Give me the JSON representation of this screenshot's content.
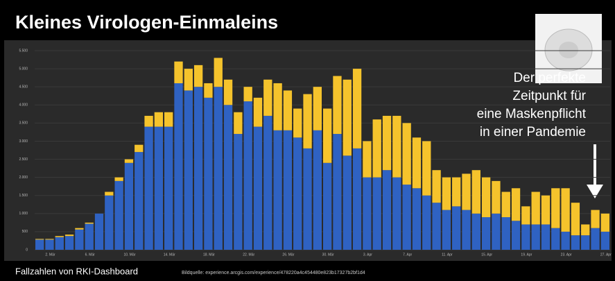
{
  "chart_data": {
    "type": "stacked-bar",
    "title": "Kleines Virologen-Einmaleins",
    "annotation": [
      "Der perfekte",
      "Zeitpunkt für",
      "eine Maskenpflicht",
      "in einer Pandemie"
    ],
    "footer": "Fallzahlen von RKI-Dashboard",
    "source": "Bildquelle: experience.arcgis.com/experience/478220a4c454480e823b17327b2bf1d4",
    "categories": [
      null,
      "2. Mär",
      null,
      null,
      null,
      "6. Mär",
      null,
      null,
      null,
      "10. Mär",
      null,
      null,
      null,
      "14. Mär",
      null,
      null,
      null,
      "18. Mär",
      null,
      null,
      null,
      "22. Mär",
      null,
      null,
      null,
      "26. Mär",
      null,
      null,
      null,
      "30. Mär",
      null,
      null,
      null,
      "3. Apr",
      null,
      null,
      null,
      "7. Apr",
      null,
      null,
      null,
      "11. Apr",
      null,
      null,
      null,
      "15. Apr",
      null,
      null,
      null,
      "19. Apr",
      null,
      null,
      null,
      "23. Apr",
      null,
      null,
      null,
      "27. Apr"
    ],
    "series": [
      {
        "color": "#2f62c2",
        "values": [
          280,
          280,
          350,
          380,
          560,
          720,
          1000,
          1500,
          1900,
          2400,
          2700,
          3400,
          3400,
          3400,
          4600,
          4400,
          4500,
          4200,
          4500,
          4000,
          3200,
          4100,
          3400,
          3700,
          3300,
          3300,
          3100,
          2800,
          3300,
          2400,
          3200,
          2600,
          2800,
          2000,
          2000,
          2200,
          2000,
          1800,
          1700,
          1500,
          1300,
          1100,
          1200,
          1100,
          1000,
          900,
          1000,
          900,
          800,
          700,
          700,
          700,
          600,
          500,
          400,
          400,
          600,
          500
        ]
      },
      {
        "color": "#f5c32c",
        "values": [
          20,
          20,
          30,
          40,
          40,
          30,
          0,
          100,
          100,
          100,
          200,
          300,
          400,
          400,
          600,
          600,
          600,
          400,
          800,
          700,
          600,
          400,
          800,
          1000,
          1300,
          1100,
          800,
          1500,
          1200,
          1500,
          1600,
          2100,
          2200,
          1000,
          1600,
          1500,
          1700,
          1700,
          1400,
          1500,
          900,
          900,
          800,
          1000,
          1200,
          1100,
          900,
          700,
          900,
          500,
          900,
          800,
          1100,
          1200,
          900,
          300,
          500,
          500
        ]
      }
    ],
    "ylim": [
      0,
      5500
    ],
    "yticks": [
      0,
      500,
      {
        "value": 1000,
        "label": "1.000"
      },
      {
        "value": 1500,
        "label": "1.500"
      },
      {
        "value": 2000,
        "label": "2.000"
      },
      {
        "value": 2500,
        "label": "2.500"
      },
      {
        "value": 3000,
        "label": "3.000"
      },
      {
        "value": 3500,
        "label": "3.500"
      },
      {
        "value": 4000,
        "label": "4.000"
      },
      {
        "value": 4500,
        "label": "4.500"
      },
      {
        "value": 5000,
        "label": "5.000"
      },
      {
        "value": 5500,
        "label": "5.500"
      }
    ],
    "grid": true
  }
}
